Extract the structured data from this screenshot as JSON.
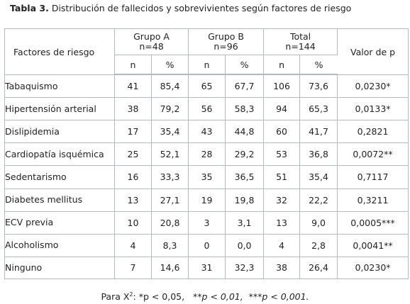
{
  "caption": {
    "label": "Tabla 3.",
    "text": "Distribución de fallecidos y sobrevivientes según factores de riesgo"
  },
  "table": {
    "factor_header": "Factores de riesgo",
    "groups": [
      {
        "name": "Grupo A",
        "n_label": "n=48"
      },
      {
        "name": "Grupo B",
        "n_label": "n=96"
      },
      {
        "name": "Total",
        "n_label": "n=144"
      }
    ],
    "pvalue_header": "Valor de p",
    "sub_n": "n",
    "sub_pct": "%",
    "rows": [
      {
        "factor": "Tabaquismo",
        "a_n": "41",
        "a_pct": "85,4",
        "b_n": "65",
        "b_pct": "67,7",
        "t_n": "106",
        "t_pct": "73,6",
        "p": "0,0230*"
      },
      {
        "factor": "Hipertensión arterial",
        "a_n": "38",
        "a_pct": "79,2",
        "b_n": "56",
        "b_pct": "58,3",
        "t_n": "94",
        "t_pct": "65,3",
        "p": "0,0133*"
      },
      {
        "factor": "Dislipidemia",
        "a_n": "17",
        "a_pct": "35,4",
        "b_n": "43",
        "b_pct": "44,8",
        "t_n": "60",
        "t_pct": "41,7",
        "p": "0,2821"
      },
      {
        "factor": "Cardiopatía isquémica",
        "a_n": "25",
        "a_pct": "52,1",
        "b_n": "28",
        "b_pct": "29,2",
        "t_n": "53",
        "t_pct": "36,8",
        "p": "0,0072**"
      },
      {
        "factor": "Sedentarismo",
        "a_n": "16",
        "a_pct": "33,3",
        "b_n": "35",
        "b_pct": "36,5",
        "t_n": "51",
        "t_pct": "35,4",
        "p": "0,7117"
      },
      {
        "factor": "Diabetes mellitus",
        "a_n": "13",
        "a_pct": "27,1",
        "b_n": "19",
        "b_pct": "19,8",
        "t_n": "32",
        "t_pct": "22,2",
        "p": "0,3211"
      },
      {
        "factor": "ECV previa",
        "a_n": "10",
        "a_pct": "20,8",
        "b_n": "3",
        "b_pct": "3,1",
        "t_n": "13",
        "t_pct": "9,0",
        "p": "0,0005***"
      },
      {
        "factor": "Alcoholismo",
        "a_n": "4",
        "a_pct": "8,3",
        "b_n": "0",
        "b_pct": "0,0",
        "t_n": "4",
        "t_pct": "2,8",
        "p": "0,0041**"
      },
      {
        "factor": "Ninguno",
        "a_n": "7",
        "a_pct": "14,6",
        "b_n": "31",
        "b_pct": "32,3",
        "t_n": "38",
        "t_pct": "26,4",
        "p": "0,0230*"
      }
    ]
  },
  "footnote": {
    "prefix": "Para X",
    "sup": "2",
    "p1": ": *p < 0,05,",
    "p2": "**p < 0,01,",
    "p3": "***p < 0,001."
  }
}
